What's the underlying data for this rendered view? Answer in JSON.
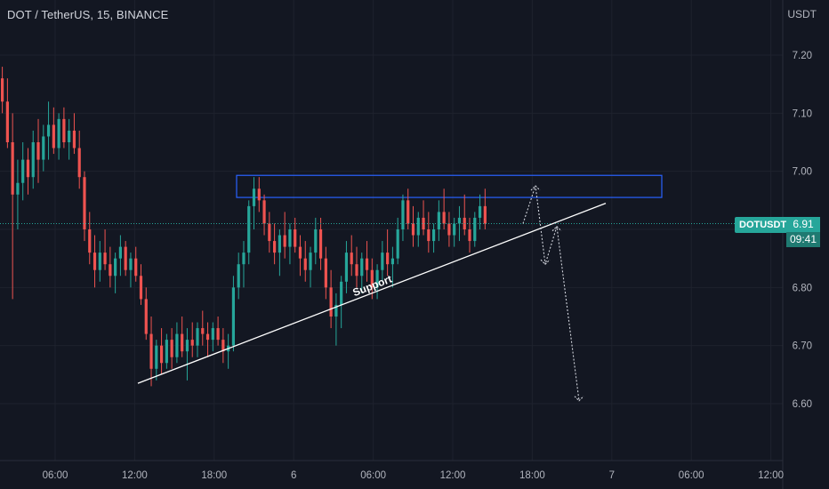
{
  "header": {
    "title": "DOT / TetherUS, 15, BINANCE",
    "currency": "USDT"
  },
  "price_marker": {
    "symbol": "DOTUSDT",
    "price": "6.91",
    "countdown": "09:41",
    "color": "#26a69a"
  },
  "colors": {
    "background": "#131722",
    "grid": "#1e222d",
    "up": "#26a69a",
    "down": "#ef5350",
    "resistance_box": "#2962ff",
    "support_line": "#ffffff",
    "current_price_line": "#26a69a"
  },
  "chart_data": {
    "type": "candlestick",
    "symbol": "DOT / TetherUS",
    "interval": "15",
    "exchange": "BINANCE",
    "x_tick_labels": [
      "06:00",
      "12:00",
      "18:00",
      "6",
      "06:00",
      "12:00",
      "18:00",
      "7",
      "06:00",
      "12:00"
    ],
    "y_tick_labels": [
      "7.20",
      "7.10",
      "7.00",
      "6.90",
      "6.80",
      "6.70",
      "6.60"
    ],
    "ylim": [
      6.56,
      7.27
    ],
    "grid": true,
    "current_price": 6.91,
    "resistance_zone": {
      "low": 6.955,
      "high": 6.993,
      "from_tick": "19:00",
      "to_tick": "05:00"
    },
    "support_line": {
      "label": "Support",
      "start": [
        "12:00",
        6.635
      ],
      "end": [
        "23:00",
        6.945
      ]
    },
    "projection": [
      [
        "18:00",
        6.91
      ],
      [
        "18:30",
        6.975
      ],
      [
        "19:30",
        6.84
      ],
      [
        "20:30",
        6.905
      ],
      [
        "22:00",
        6.605
      ]
    ],
    "candles": [
      [
        7.16,
        7.18,
        7.1,
        7.12
      ],
      [
        7.12,
        7.16,
        7.04,
        7.05
      ],
      [
        7.05,
        7.1,
        6.78,
        6.96
      ],
      [
        6.96,
        7.02,
        6.9,
        6.98
      ],
      [
        6.98,
        7.05,
        6.95,
        7.02
      ],
      [
        7.02,
        7.04,
        6.96,
        6.99
      ],
      [
        6.99,
        7.07,
        6.97,
        7.05
      ],
      [
        7.05,
        7.09,
        6.98,
        7.02
      ],
      [
        7.02,
        7.08,
        7.0,
        7.06
      ],
      [
        7.06,
        7.12,
        7.02,
        7.08
      ],
      [
        7.08,
        7.11,
        7.03,
        7.04
      ],
      [
        7.04,
        7.1,
        7.02,
        7.09
      ],
      [
        7.09,
        7.11,
        7.04,
        7.05
      ],
      [
        7.05,
        7.09,
        7.02,
        7.07
      ],
      [
        7.07,
        7.1,
        7.03,
        7.04
      ],
      [
        7.04,
        7.07,
        6.97,
        6.99
      ],
      [
        6.99,
        7.0,
        6.88,
        6.9
      ],
      [
        6.9,
        6.93,
        6.84,
        6.86
      ],
      [
        6.86,
        6.89,
        6.8,
        6.83
      ],
      [
        6.83,
        6.88,
        6.81,
        6.86
      ],
      [
        6.86,
        6.9,
        6.83,
        6.84
      ],
      [
        6.84,
        6.87,
        6.8,
        6.82
      ],
      [
        6.82,
        6.86,
        6.79,
        6.85
      ],
      [
        6.85,
        6.89,
        6.82,
        6.87
      ],
      [
        6.87,
        6.88,
        6.82,
        6.83
      ],
      [
        6.83,
        6.86,
        6.8,
        6.85
      ],
      [
        6.85,
        6.87,
        6.81,
        6.82
      ],
      [
        6.82,
        6.84,
        6.77,
        6.78
      ],
      [
        6.78,
        6.8,
        6.71,
        6.72
      ],
      [
        6.72,
        6.75,
        6.63,
        6.66
      ],
      [
        6.66,
        6.71,
        6.64,
        6.7
      ],
      [
        6.7,
        6.73,
        6.65,
        6.67
      ],
      [
        6.67,
        6.72,
        6.66,
        6.71
      ],
      [
        6.71,
        6.73,
        6.66,
        6.68
      ],
      [
        6.68,
        6.74,
        6.67,
        6.72
      ],
      [
        6.72,
        6.75,
        6.68,
        6.69
      ],
      [
        6.69,
        6.73,
        6.64,
        6.71
      ],
      [
        6.71,
        6.74,
        6.68,
        6.7
      ],
      [
        6.7,
        6.74,
        6.68,
        6.73
      ],
      [
        6.73,
        6.76,
        6.7,
        6.72
      ],
      [
        6.72,
        6.74,
        6.68,
        6.71
      ],
      [
        6.71,
        6.74,
        6.69,
        6.73
      ],
      [
        6.73,
        6.75,
        6.7,
        6.71
      ],
      [
        6.71,
        6.73,
        6.67,
        6.69
      ],
      [
        6.69,
        6.72,
        6.66,
        6.7
      ],
      [
        6.7,
        6.82,
        6.69,
        6.8
      ],
      [
        6.8,
        6.86,
        6.78,
        6.84
      ],
      [
        6.84,
        6.88,
        6.8,
        6.86
      ],
      [
        6.86,
        6.95,
        6.84,
        6.94
      ],
      [
        6.94,
        6.99,
        6.9,
        6.97
      ],
      [
        6.97,
        6.99,
        6.93,
        6.95
      ],
      [
        6.95,
        6.96,
        6.89,
        6.91
      ],
      [
        6.91,
        6.93,
        6.86,
        6.88
      ],
      [
        6.88,
        6.91,
        6.84,
        6.86
      ],
      [
        6.86,
        6.9,
        6.82,
        6.89
      ],
      [
        6.89,
        6.93,
        6.85,
        6.87
      ],
      [
        6.87,
        6.91,
        6.84,
        6.9
      ],
      [
        6.9,
        6.92,
        6.86,
        6.87
      ],
      [
        6.87,
        6.89,
        6.82,
        6.85
      ],
      [
        6.85,
        6.88,
        6.81,
        6.83
      ],
      [
        6.83,
        6.87,
        6.8,
        6.86
      ],
      [
        6.86,
        6.92,
        6.84,
        6.9
      ],
      [
        6.9,
        6.92,
        6.83,
        6.85
      ],
      [
        6.85,
        6.87,
        6.78,
        6.8
      ],
      [
        6.8,
        6.83,
        6.73,
        6.75
      ],
      [
        6.75,
        6.79,
        6.7,
        6.77
      ],
      [
        6.77,
        6.82,
        6.73,
        6.81
      ],
      [
        6.81,
        6.88,
        6.79,
        6.86
      ],
      [
        6.86,
        6.89,
        6.82,
        6.84
      ],
      [
        6.84,
        6.87,
        6.8,
        6.82
      ],
      [
        6.82,
        6.86,
        6.79,
        6.85
      ],
      [
        6.85,
        6.88,
        6.81,
        6.83
      ],
      [
        6.83,
        6.85,
        6.78,
        6.8
      ],
      [
        6.8,
        6.84,
        6.78,
        6.83
      ],
      [
        6.83,
        6.88,
        6.81,
        6.86
      ],
      [
        6.86,
        6.9,
        6.82,
        6.84
      ],
      [
        6.84,
        6.87,
        6.8,
        6.85
      ],
      [
        6.85,
        6.92,
        6.84,
        6.9
      ],
      [
        6.9,
        6.96,
        6.88,
        6.95
      ],
      [
        6.95,
        6.97,
        6.9,
        6.91
      ],
      [
        6.91,
        6.94,
        6.87,
        6.89
      ],
      [
        6.89,
        6.93,
        6.87,
        6.92
      ],
      [
        6.92,
        6.95,
        6.89,
        6.9
      ],
      [
        6.9,
        6.93,
        6.86,
        6.88
      ],
      [
        6.88,
        6.91,
        6.86,
        6.9
      ],
      [
        6.9,
        6.95,
        6.88,
        6.93
      ],
      [
        6.93,
        6.97,
        6.9,
        6.91
      ],
      [
        6.91,
        6.93,
        6.87,
        6.89
      ],
      [
        6.89,
        6.92,
        6.87,
        6.91
      ],
      [
        6.91,
        6.94,
        6.88,
        6.92
      ],
      [
        6.92,
        6.96,
        6.89,
        6.9
      ],
      [
        6.9,
        6.92,
        6.86,
        6.88
      ],
      [
        6.88,
        6.93,
        6.87,
        6.92
      ],
      [
        6.92,
        6.96,
        6.9,
        6.94
      ],
      [
        6.94,
        6.97,
        6.9,
        6.91
      ]
    ]
  }
}
